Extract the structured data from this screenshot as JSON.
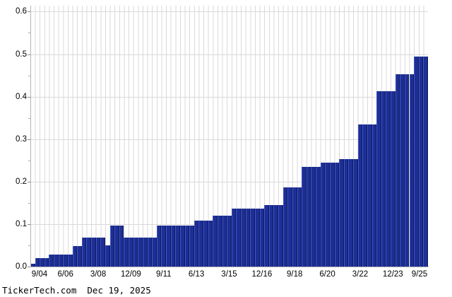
{
  "chart_data": {
    "type": "bar",
    "title": "",
    "xlabel": "",
    "ylabel": "",
    "ylim": [
      0,
      0.6
    ],
    "grid": "on",
    "legend": "none",
    "y_tick_labels": [
      "0.0",
      "0.1",
      "0.2",
      "0.3",
      "0.4",
      "0.5",
      "0.6"
    ],
    "y_minor_tick_step": 0.05,
    "x_tick_labels": [
      "9/04",
      "6/06",
      "3/08",
      "12/09",
      "9/11",
      "6/13",
      "3/15",
      "12/16",
      "9/18",
      "6/20",
      "3/22",
      "12/23",
      "9/25"
    ],
    "x_tick_bar_index": [
      1,
      8,
      15,
      22,
      29,
      36,
      43,
      50,
      57,
      64,
      71,
      78,
      85
    ],
    "categories": [
      "9/04",
      "12/04",
      "3/05",
      "6/05",
      "9/05",
      "12/05",
      "3/06",
      "6/06",
      "9/06",
      "12/06",
      "3/07",
      "6/07",
      "9/07",
      "12/07",
      "3/08",
      "6/08",
      "9/08",
      "12/08",
      "3/09",
      "6/09",
      "9/09",
      "12/09",
      "3/10",
      "6/10",
      "9/10",
      "12/10",
      "3/11",
      "6/11",
      "9/11",
      "12/11",
      "3/12",
      "6/12",
      "9/12",
      "12/12",
      "3/13",
      "6/13",
      "9/13",
      "12/13",
      "3/14",
      "6/14",
      "9/14",
      "12/14",
      "3/15",
      "6/15",
      "9/15",
      "12/15",
      "3/16",
      "6/16",
      "9/16",
      "12/16",
      "3/17",
      "6/17",
      "9/17",
      "12/17",
      "3/18",
      "6/18",
      "9/18",
      "12/18",
      "3/19",
      "6/19",
      "9/19",
      "12/19",
      "3/20",
      "6/20",
      "9/20",
      "12/20",
      "3/21",
      "6/21",
      "9/21",
      "12/21",
      "3/22",
      "6/22",
      "9/22",
      "12/22",
      "3/23",
      "6/23",
      "9/23",
      "12/23",
      "3/24",
      "6/24",
      "9/24",
      "12/24",
      "3/25",
      "6/25",
      "9/25"
    ],
    "values": [
      0.0075,
      0.02,
      0.02,
      0.02,
      0.028,
      0.028,
      0.028,
      0.028,
      0.028,
      0.048,
      0.048,
      0.068,
      0.068,
      0.068,
      0.068,
      0.068,
      0.05,
      0.097,
      0.097,
      0.097,
      0.068,
      0.068,
      0.068,
      0.068,
      0.068,
      0.068,
      0.068,
      0.097,
      0.097,
      0.097,
      0.097,
      0.097,
      0.097,
      0.097,
      0.097,
      0.108,
      0.108,
      0.108,
      0.108,
      0.12,
      0.12,
      0.12,
      0.12,
      0.137,
      0.137,
      0.137,
      0.137,
      0.137,
      0.137,
      0.137,
      0.145,
      0.145,
      0.145,
      0.145,
      0.186,
      0.186,
      0.186,
      0.186,
      0.235,
      0.235,
      0.235,
      0.235,
      0.245,
      0.245,
      0.245,
      0.245,
      0.253,
      0.253,
      0.253,
      0.253,
      0.335,
      0.335,
      0.335,
      0.335,
      0.413,
      0.413,
      0.413,
      0.413,
      0.453,
      0.453,
      0.453,
      0.453,
      0.495,
      0.495,
      0.495
    ],
    "colors": {
      "bar_body": "#1d2f96",
      "bar_highlight": "#4458c0",
      "bar_shadow": "#0b1758",
      "gridline": "#d9d9d9",
      "axis": "#b3b3b3",
      "text": "#000000",
      "background": "#ffffff"
    }
  },
  "footer": {
    "text": "TickerTech.com  Dec 19, 2025"
  }
}
